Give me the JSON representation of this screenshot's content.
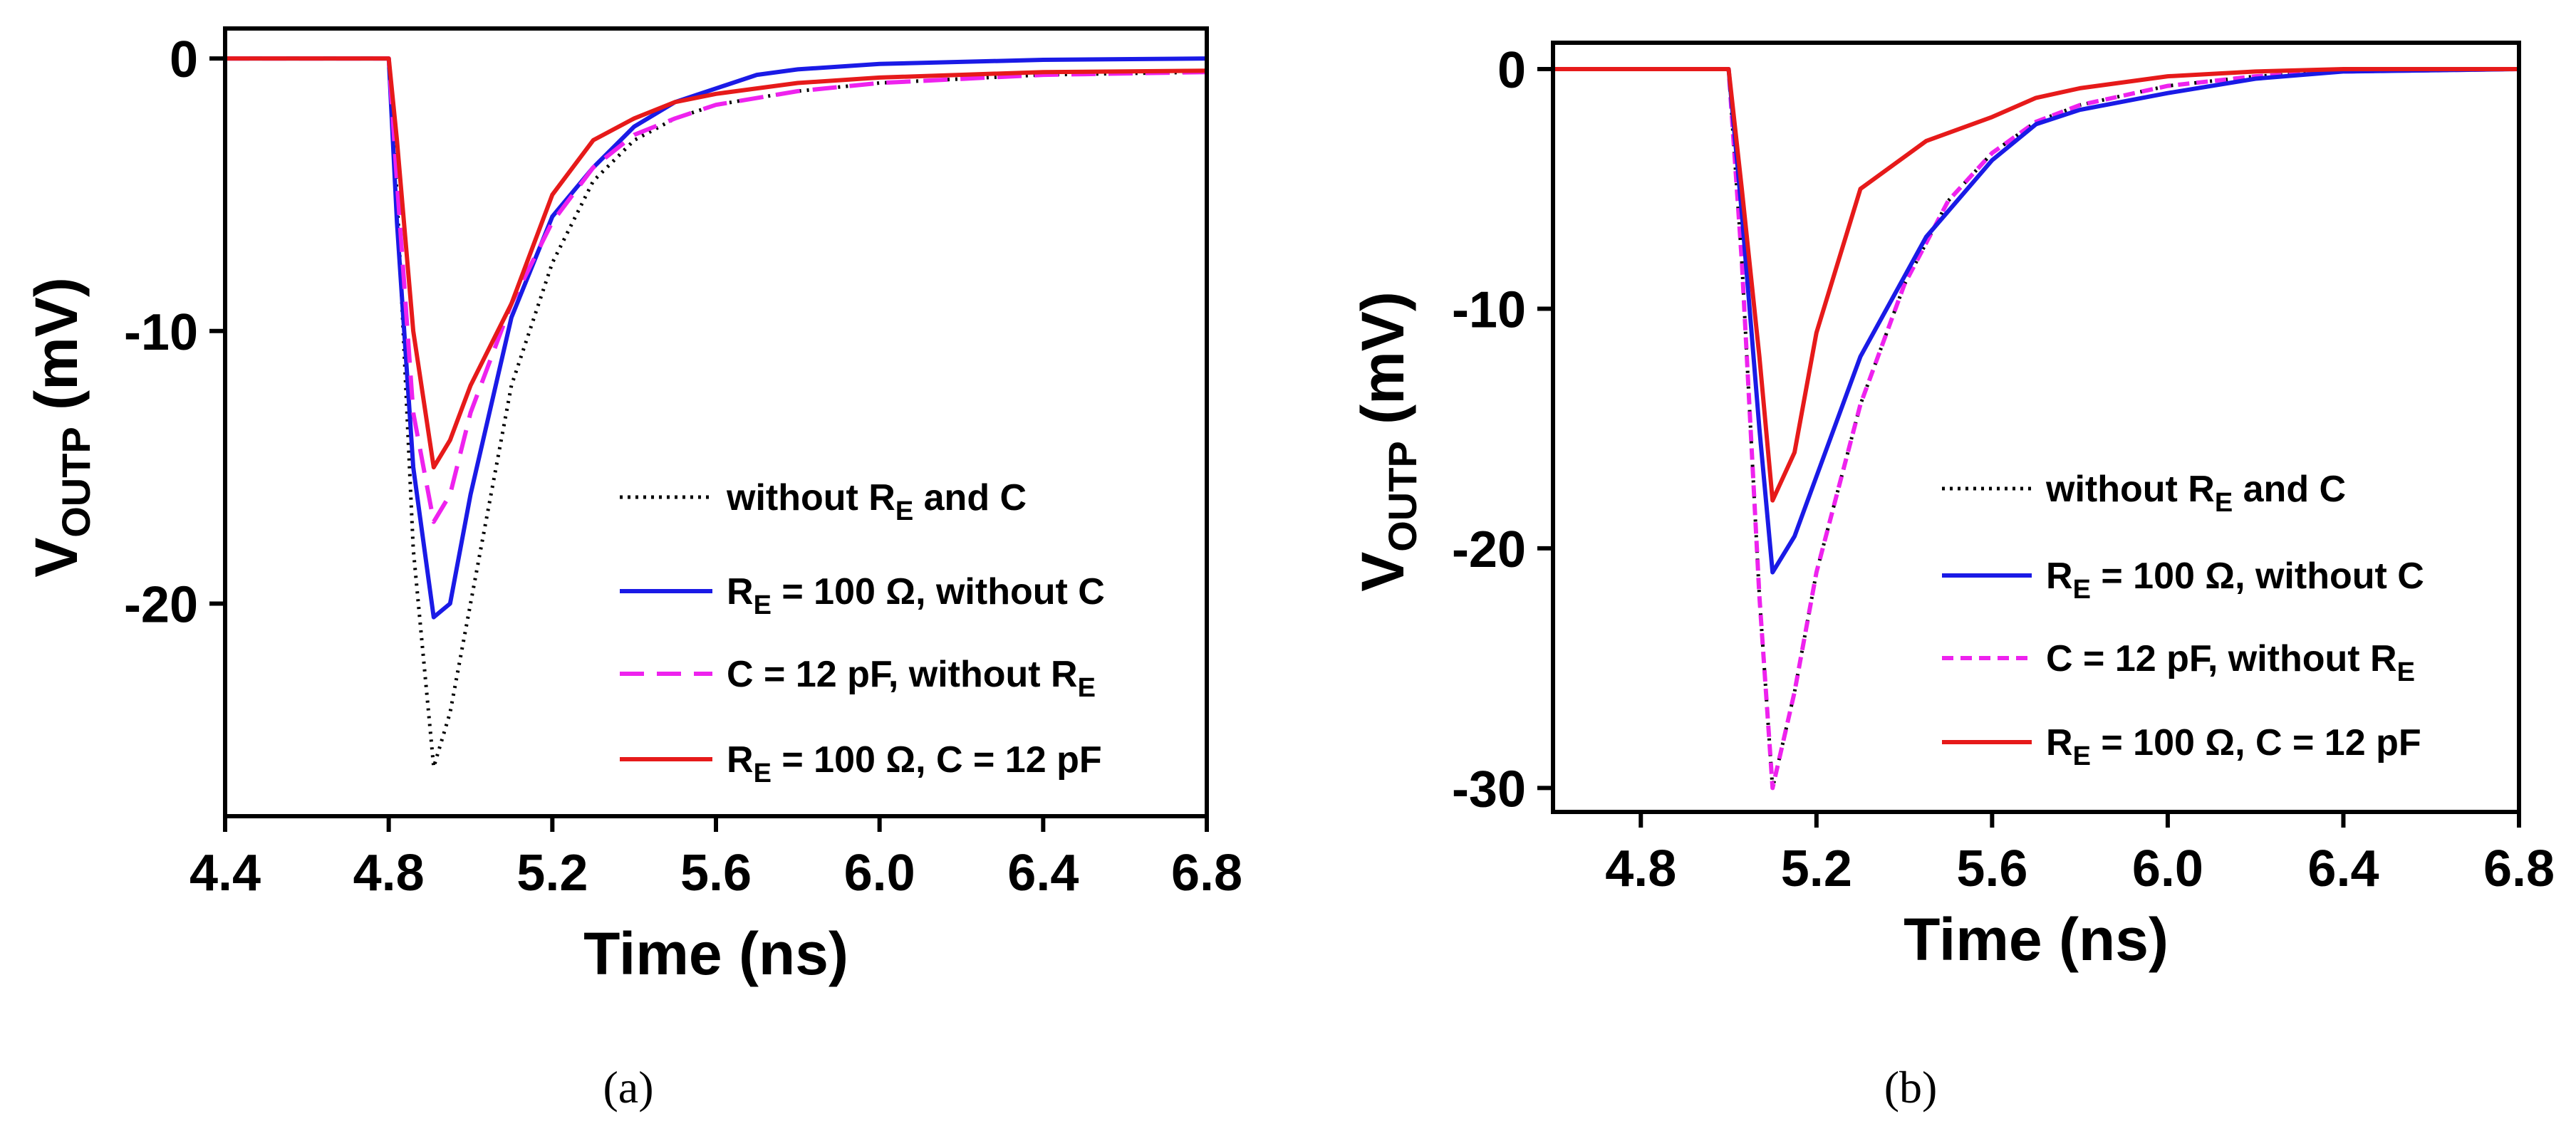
{
  "chart_data": [
    {
      "type": "line",
      "panel_id": "a",
      "caption": "(a)",
      "xlabel": "Time (ns)",
      "ylabel": {
        "base": "V",
        "sub": "OUTP",
        "unit": " (mV)"
      },
      "xlim": [
        4.4,
        6.8
      ],
      "ylim": [
        -27.8,
        1.1
      ],
      "xticks": [
        4.4,
        4.8,
        5.2,
        5.6,
        6.0,
        6.4,
        6.8
      ],
      "xtick_labels": [
        "4.4",
        "4.8",
        "5.2",
        "5.6",
        "6.0",
        "6.4",
        "6.8"
      ],
      "yticks": [
        0,
        -10,
        -20
      ],
      "ytick_labels": [
        "0",
        "-10",
        "-20"
      ],
      "series": [
        {
          "key": "black",
          "legend": {
            "pre": "without R",
            "sub": "E",
            "post": " and C"
          },
          "color": "#000000",
          "style": "dotted",
          "x": [
            4.4,
            4.8,
            4.82,
            4.86,
            4.91,
            4.95,
            5.0,
            5.05,
            5.1,
            5.2,
            5.3,
            5.4,
            5.5,
            5.6,
            5.8,
            6.0,
            6.4,
            6.8
          ],
          "y": [
            0,
            0,
            -5,
            -18,
            -26,
            -24,
            -20,
            -16,
            -12,
            -7.5,
            -4.5,
            -3,
            -2.2,
            -1.7,
            -1.2,
            -0.9,
            -0.6,
            -0.5
          ]
        },
        {
          "key": "blue",
          "legend": {
            "pre": "R",
            "sub": "E",
            "post": " = 100 Ω, without C"
          },
          "color": "#1a1ae6",
          "style": "solid",
          "x": [
            4.4,
            4.8,
            4.82,
            4.86,
            4.91,
            4.95,
            5.0,
            5.1,
            5.2,
            5.3,
            5.4,
            5.5,
            5.6,
            5.7,
            5.8,
            6.0,
            6.4,
            6.8
          ],
          "y": [
            0,
            0,
            -6,
            -15,
            -20.5,
            -20,
            -16,
            -9.5,
            -5.8,
            -4,
            -2.5,
            -1.6,
            -1.1,
            -0.6,
            -0.4,
            -0.2,
            -0.05,
            0
          ]
        },
        {
          "key": "magenta",
          "legend": {
            "pre": "C = 12 pF, without R",
            "sub": "E",
            "post": ""
          },
          "color": "#ee22ee",
          "style": "dashed",
          "x": [
            4.4,
            4.8,
            4.82,
            4.86,
            4.91,
            4.95,
            5.0,
            5.1,
            5.2,
            5.3,
            5.4,
            5.5,
            5.6,
            5.8,
            6.0,
            6.4,
            6.8
          ],
          "y": [
            0,
            0,
            -4.5,
            -13,
            -17,
            -16,
            -13,
            -9,
            -6,
            -4,
            -2.8,
            -2.2,
            -1.7,
            -1.2,
            -0.9,
            -0.6,
            -0.5
          ]
        },
        {
          "key": "red",
          "legend": {
            "pre": "R",
            "sub": "E",
            "post": " = 100 Ω, C = 12 pF"
          },
          "color": "#e61a1a",
          "style": "solid",
          "x": [
            4.4,
            4.8,
            4.82,
            4.86,
            4.91,
            4.95,
            5.0,
            5.1,
            5.2,
            5.3,
            5.4,
            5.5,
            5.6,
            5.8,
            6.0,
            6.4,
            6.8
          ],
          "y": [
            0,
            0,
            -3,
            -10,
            -15,
            -14,
            -12,
            -9,
            -5,
            -3,
            -2.2,
            -1.6,
            -1.3,
            -0.9,
            -0.7,
            -0.5,
            -0.45
          ]
        }
      ]
    },
    {
      "type": "line",
      "panel_id": "b",
      "caption": "(b)",
      "xlabel": "Time (ns)",
      "ylabel": {
        "base": "V",
        "sub": "OUTP",
        "unit": " (mV)"
      },
      "xlim": [
        4.6,
        6.8
      ],
      "ylim": [
        -31,
        1.1
      ],
      "xticks": [
        4.8,
        5.2,
        5.6,
        6.0,
        6.4,
        6.8
      ],
      "xtick_labels": [
        "4.8",
        "5.2",
        "5.6",
        "6.0",
        "6.4",
        "6.8"
      ],
      "yticks": [
        0,
        -10,
        -20,
        -30
      ],
      "ytick_labels": [
        "0",
        "-10",
        "-20",
        "-30"
      ],
      "series": [
        {
          "key": "black",
          "legend": {
            "pre": "without R",
            "sub": "E",
            "post": " and C"
          },
          "color": "#000000",
          "style": "dotted",
          "x": [
            4.6,
            5.0,
            5.03,
            5.07,
            5.1,
            5.15,
            5.2,
            5.3,
            5.4,
            5.5,
            5.6,
            5.7,
            5.8,
            6.0,
            6.2,
            6.4,
            6.8
          ],
          "y": [
            0,
            0,
            -8,
            -22,
            -30,
            -26,
            -21,
            -14,
            -9,
            -5.5,
            -3.5,
            -2.2,
            -1.5,
            -0.7,
            -0.3,
            -0.1,
            0
          ]
        },
        {
          "key": "magenta",
          "legend": {
            "pre": "C = 12 pF, without R",
            "sub": "E",
            "post": ""
          },
          "color": "#ee22ee",
          "style": "dashed",
          "x": [
            4.6,
            5.0,
            5.03,
            5.07,
            5.1,
            5.15,
            5.2,
            5.3,
            5.4,
            5.5,
            5.6,
            5.7,
            5.8,
            6.0,
            6.2,
            6.4,
            6.8
          ],
          "y": [
            0,
            0,
            -8,
            -22,
            -30,
            -26,
            -21,
            -14,
            -9,
            -5.5,
            -3.5,
            -2.2,
            -1.5,
            -0.7,
            -0.3,
            -0.1,
            0
          ]
        },
        {
          "key": "blue",
          "legend": {
            "pre": "R",
            "sub": "E",
            "post": " = 100 Ω, without C"
          },
          "color": "#1a1ae6",
          "style": "solid",
          "x": [
            4.6,
            5.0,
            5.03,
            5.07,
            5.1,
            5.15,
            5.2,
            5.3,
            5.45,
            5.6,
            5.7,
            5.8,
            6.0,
            6.2,
            6.4,
            6.8
          ],
          "y": [
            0,
            0,
            -6,
            -15,
            -21,
            -19.5,
            -17,
            -12,
            -7,
            -3.8,
            -2.3,
            -1.7,
            -1,
            -0.4,
            -0.1,
            0
          ]
        },
        {
          "key": "red",
          "legend": {
            "pre": "R",
            "sub": "E",
            "post": " = 100 Ω, C = 12 pF"
          },
          "color": "#e61a1a",
          "style": "solid",
          "x": [
            4.6,
            5.0,
            5.03,
            5.07,
            5.1,
            5.15,
            5.2,
            5.3,
            5.45,
            5.6,
            5.7,
            5.8,
            6.0,
            6.2,
            6.4,
            6.8
          ],
          "y": [
            0,
            0,
            -5,
            -12,
            -18,
            -16,
            -11,
            -5,
            -3,
            -2,
            -1.2,
            -0.8,
            -0.3,
            -0.1,
            0,
            0
          ]
        }
      ]
    }
  ]
}
